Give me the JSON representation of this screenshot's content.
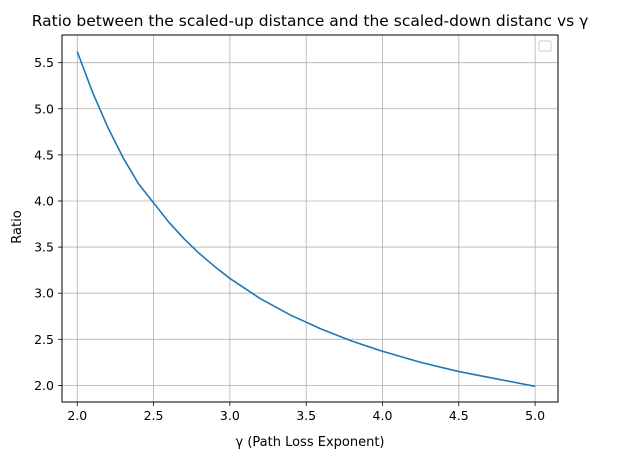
{
  "chart_data": {
    "type": "line",
    "title": "Ratio between the scaled-up distance and the scaled-down distanc vs γ",
    "xlabel": "γ (Path Loss Exponent)",
    "ylabel": "Ratio",
    "xlim": [
      1.9,
      5.15
    ],
    "ylim": [
      1.82,
      5.8
    ],
    "xticks": [
      2.0,
      2.5,
      3.0,
      3.5,
      4.0,
      4.5,
      5.0
    ],
    "xtick_labels": [
      "2.0",
      "2.5",
      "3.0",
      "3.5",
      "4.0",
      "4.5",
      "5.0"
    ],
    "yticks": [
      2.0,
      2.5,
      3.0,
      3.5,
      4.0,
      4.5,
      5.0,
      5.5
    ],
    "ytick_labels": [
      "2.0",
      "2.5",
      "3.0",
      "3.5",
      "4.0",
      "4.5",
      "5.0",
      "5.5"
    ],
    "grid": true,
    "legend": {
      "placement": "top-right",
      "entries": []
    },
    "series": [
      {
        "color": "#1f77b4",
        "x": [
          2.0,
          2.1,
          2.2,
          2.3,
          2.4,
          2.5,
          2.6,
          2.7,
          2.8,
          2.9,
          3.0,
          3.2,
          3.4,
          3.6,
          3.8,
          4.0,
          4.25,
          4.5,
          4.75,
          5.0
        ],
        "y": [
          5.62,
          5.18,
          4.8,
          4.47,
          4.19,
          3.98,
          3.77,
          3.59,
          3.43,
          3.29,
          3.16,
          2.94,
          2.76,
          2.61,
          2.48,
          2.37,
          2.25,
          2.15,
          2.07,
          1.99
        ]
      }
    ]
  }
}
